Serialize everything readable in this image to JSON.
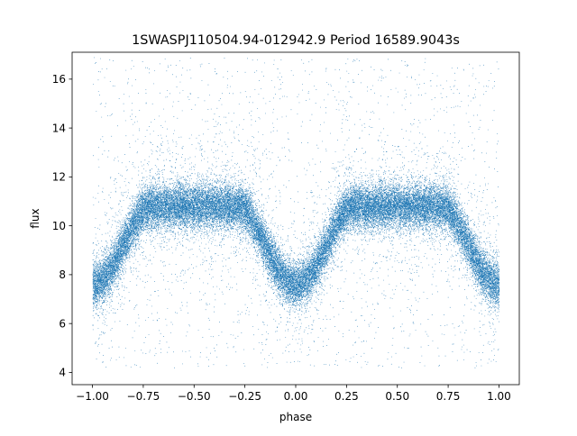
{
  "chart_data": {
    "type": "scatter",
    "title": "1SWASPJ110504.94-012942.9 Period 16589.9043s",
    "xlabel": "phase",
    "ylabel": "flux",
    "xlim": [
      -1.1,
      1.1
    ],
    "ylim": [
      3.5,
      17.1
    ],
    "xticks": [
      -1.0,
      -0.75,
      -0.5,
      -0.25,
      0.0,
      0.25,
      0.5,
      0.75,
      1.0
    ],
    "xtick_labels": [
      "−1.00",
      "−0.75",
      "−0.50",
      "−0.25",
      "0.00",
      "0.25",
      "0.50",
      "0.75",
      "1.00"
    ],
    "yticks": [
      4,
      6,
      8,
      10,
      12,
      14,
      16
    ],
    "ytick_labels": [
      "4",
      "6",
      "8",
      "10",
      "12",
      "14",
      "16"
    ],
    "grid": false,
    "legend": "none",
    "point_color": "#1f77b4",
    "series": [
      {
        "phase_range": [
          -1.0,
          1.0
        ],
        "baseline_flux": 10.8,
        "baseline_scatter": 0.6,
        "eclipse_minimum_flux": 7.6,
        "eclipse_phases": [
          -1.0,
          0.0,
          1.0
        ],
        "eclipse_half_width_phase": 0.28,
        "outlier_flux_range": [
          4.2,
          16.9
        ],
        "approx_point_count": 40000
      }
    ]
  }
}
